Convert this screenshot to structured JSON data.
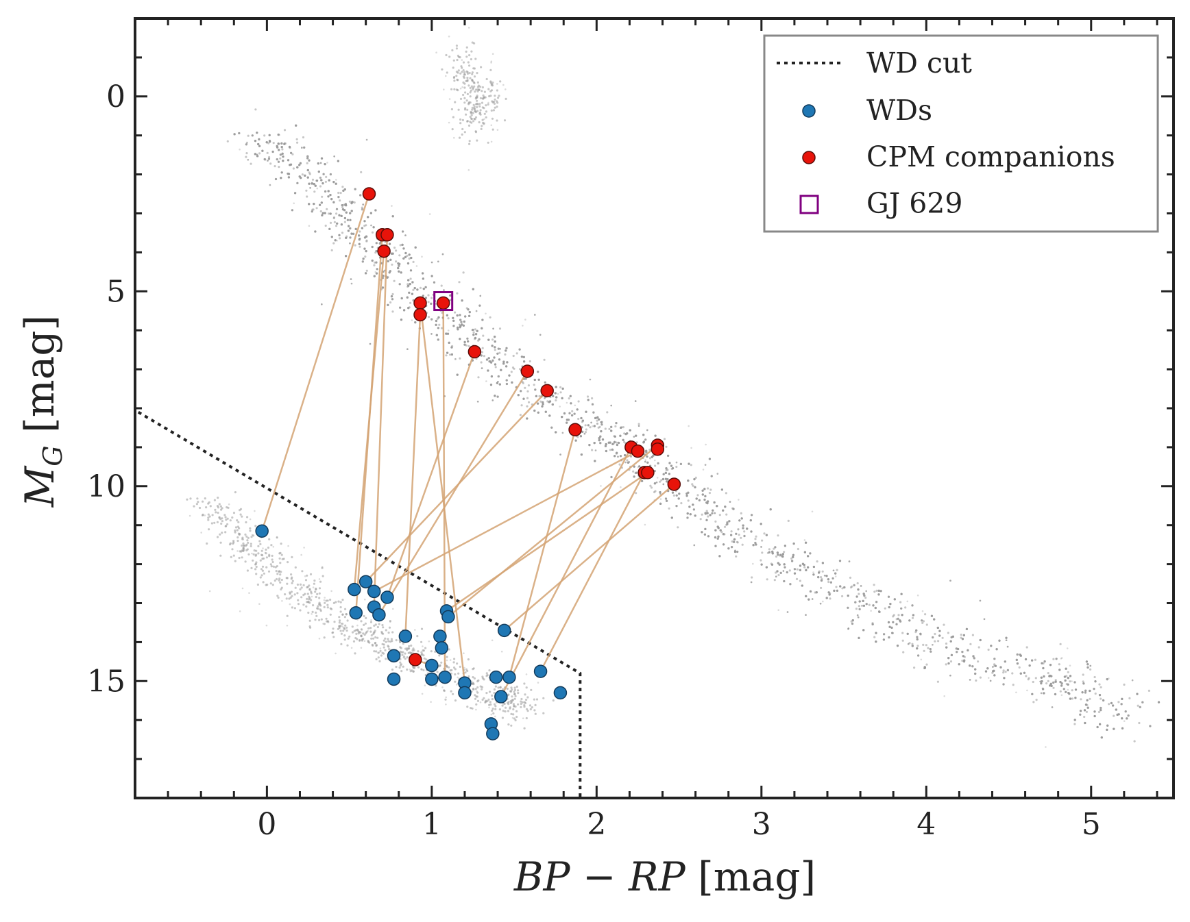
{
  "chart_data": {
    "type": "scatter",
    "xlabel": "BP − RP [mag]",
    "ylabel": "M_G [mag]",
    "xlim": [
      -0.8,
      5.5
    ],
    "ylim": [
      18,
      -2
    ],
    "y_inverted": true,
    "xticks": [
      "0",
      "1",
      "2",
      "3",
      "4",
      "5"
    ],
    "xtick_values": [
      0,
      1,
      2,
      3,
      4,
      5
    ],
    "yticks": [
      "0",
      "5",
      "10",
      "15"
    ],
    "ytick_values": [
      0,
      5,
      10,
      15
    ],
    "grid": false,
    "legend": {
      "placement": "top-right",
      "entries": [
        "WD cut",
        "WDs",
        "CPM companions",
        "GJ 629"
      ]
    },
    "wd_cut": {
      "name": "WD cut",
      "x": [
        -0.78,
        1.9,
        1.9
      ],
      "y": [
        8.1,
        14.8,
        18.0
      ]
    },
    "background_sequences": {
      "main_sequence_ridge": [
        [
          -0.05,
          1.0
        ],
        [
          0.3,
          2.2
        ],
        [
          0.6,
          3.6
        ],
        [
          0.9,
          5.0
        ],
        [
          1.2,
          6.2
        ],
        [
          1.6,
          7.4
        ],
        [
          2.0,
          8.6
        ],
        [
          2.4,
          9.7
        ],
        [
          2.8,
          11.0
        ],
        [
          3.2,
          12.1
        ],
        [
          3.7,
          13.2
        ],
        [
          4.2,
          14.3
        ],
        [
          4.8,
          15.0
        ],
        [
          5.2,
          16.0
        ]
      ],
      "white_dwarf_ridge": [
        [
          -0.35,
          10.4
        ],
        [
          -0.1,
          11.6
        ],
        [
          0.2,
          12.7
        ],
        [
          0.5,
          13.6
        ],
        [
          0.8,
          14.2
        ],
        [
          1.1,
          14.8
        ],
        [
          1.4,
          15.4
        ],
        [
          1.55,
          15.7
        ]
      ],
      "giant_branch": [
        [
          1.2,
          0.6
        ],
        [
          1.35,
          0.2
        ],
        [
          1.25,
          -0.3
        ],
        [
          1.15,
          -0.8
        ]
      ],
      "background_color": "#999999"
    },
    "series": [
      {
        "name": "WDs",
        "color": "#1f77b4",
        "points": [
          [
            -0.03,
            11.15
          ],
          [
            0.53,
            12.65
          ],
          [
            0.54,
            13.25
          ],
          [
            0.6,
            12.45
          ],
          [
            0.65,
            12.7
          ],
          [
            0.65,
            13.1
          ],
          [
            0.68,
            13.3
          ],
          [
            0.73,
            12.85
          ],
          [
            0.77,
            14.35
          ],
          [
            0.77,
            14.95
          ],
          [
            0.84,
            13.85
          ],
          [
            1.0,
            14.6
          ],
          [
            1.0,
            14.95
          ],
          [
            1.05,
            13.85
          ],
          [
            1.06,
            14.15
          ],
          [
            1.08,
            14.9
          ],
          [
            1.09,
            13.2
          ],
          [
            1.1,
            13.35
          ],
          [
            1.2,
            15.05
          ],
          [
            1.2,
            15.3
          ],
          [
            1.36,
            16.1
          ],
          [
            1.37,
            16.35
          ],
          [
            1.39,
            14.9
          ],
          [
            1.42,
            15.4
          ],
          [
            1.44,
            13.7
          ],
          [
            1.47,
            14.9
          ],
          [
            1.66,
            14.75
          ],
          [
            1.78,
            15.3
          ]
        ]
      },
      {
        "name": "CPM companions",
        "color": "#e8130a",
        "points": [
          [
            0.62,
            2.5
          ],
          [
            0.7,
            3.55
          ],
          [
            0.73,
            3.55
          ],
          [
            0.71,
            3.97
          ],
          [
            0.93,
            5.3
          ],
          [
            0.93,
            5.6
          ],
          [
            1.07,
            5.3
          ],
          [
            1.26,
            6.55
          ],
          [
            1.58,
            7.05
          ],
          [
            1.7,
            7.55
          ],
          [
            1.87,
            8.55
          ],
          [
            2.21,
            9.0
          ],
          [
            2.25,
            9.1
          ],
          [
            2.37,
            8.95
          ],
          [
            2.37,
            9.05
          ],
          [
            2.29,
            9.65
          ],
          [
            2.31,
            9.65
          ],
          [
            2.47,
            9.95
          ],
          [
            0.9,
            14.45
          ]
        ]
      },
      {
        "name": "GJ 629",
        "color": "#800080",
        "points": [
          [
            1.07,
            5.25
          ]
        ]
      }
    ],
    "pairs": [
      [
        [
          -0.03,
          11.15
        ],
        [
          0.62,
          2.5
        ]
      ],
      [
        [
          0.53,
          12.65
        ],
        [
          0.71,
          3.97
        ]
      ],
      [
        [
          0.54,
          13.25
        ],
        [
          0.7,
          3.55
        ]
      ],
      [
        [
          0.65,
          13.1
        ],
        [
          0.73,
          3.55
        ]
      ],
      [
        [
          0.68,
          13.3
        ],
        [
          1.58,
          7.05
        ]
      ],
      [
        [
          0.73,
          12.85
        ],
        [
          1.26,
          6.55
        ]
      ],
      [
        [
          0.6,
          12.45
        ],
        [
          1.7,
          7.55
        ]
      ],
      [
        [
          0.84,
          13.85
        ],
        [
          0.93,
          5.6
        ]
      ],
      [
        [
          1.08,
          14.9
        ],
        [
          1.07,
          5.3
        ]
      ],
      [
        [
          1.2,
          15.05
        ],
        [
          0.93,
          5.3
        ]
      ],
      [
        [
          1.44,
          13.7
        ],
        [
          2.47,
          9.95
        ]
      ],
      [
        [
          1.66,
          14.75
        ],
        [
          2.29,
          9.65
        ]
      ],
      [
        [
          1.47,
          14.9
        ],
        [
          1.87,
          8.55
        ]
      ],
      [
        [
          1.42,
          15.4
        ],
        [
          2.21,
          9.0
        ]
      ],
      [
        [
          1.1,
          13.35
        ],
        [
          2.37,
          8.95
        ]
      ],
      [
        [
          0.65,
          12.7
        ],
        [
          2.25,
          9.1
        ]
      ],
      [
        [
          1.09,
          13.2
        ],
        [
          2.31,
          9.65
        ]
      ],
      [
        [
          1.0,
          14.6
        ],
        [
          0.9,
          14.45
        ]
      ]
    ],
    "pair_line_color": "#d4a373"
  }
}
